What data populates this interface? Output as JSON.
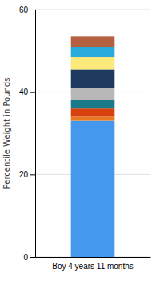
{
  "chart_data": {
    "type": "bar",
    "stacked": true,
    "ylabel": "Percentile Weight in Pounds",
    "categories": [
      "Boy 4 years 11 months"
    ],
    "series": [
      {
        "color": "#4499ee",
        "values": [
          33.0
        ]
      },
      {
        "color": "#e87820",
        "values": [
          1.0
        ]
      },
      {
        "color": "#d94010",
        "values": [
          2.0
        ]
      },
      {
        "color": "#1a7a8a",
        "values": [
          2.0
        ]
      },
      {
        "color": "#b8b8b8",
        "values": [
          3.0
        ]
      },
      {
        "color": "#1e3a5f",
        "values": [
          4.5
        ]
      },
      {
        "color": "#fde97a",
        "values": [
          3.0
        ]
      },
      {
        "color": "#29aadc",
        "values": [
          2.5
        ]
      },
      {
        "color": "#b56040",
        "values": [
          2.5
        ]
      }
    ],
    "ylim": [
      0,
      60
    ],
    "yticks": [
      0,
      20,
      40,
      60
    ],
    "grid": true
  }
}
